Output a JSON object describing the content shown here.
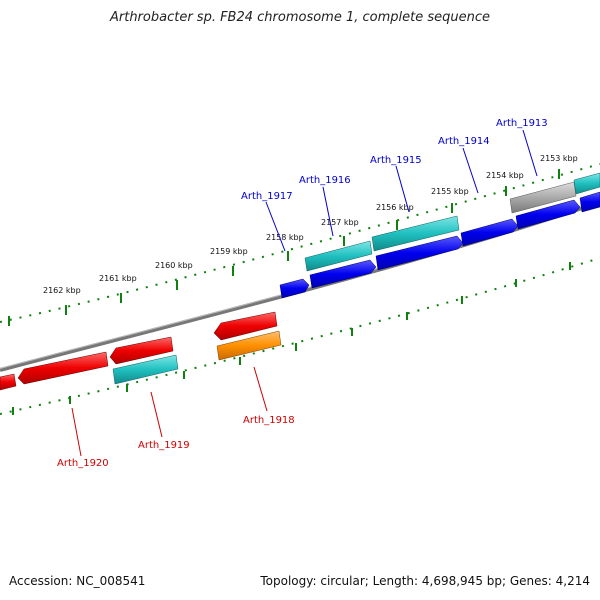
{
  "title": "Arthrobacter sp. FB24 chromosome 1, complete sequence",
  "footer": {
    "accession": "Accession: NC_008541",
    "summary": "Topology: circular; Length: 4,698,945 bp; Genes: 4,214"
  },
  "colors": {
    "forward_gene": "#0000ee",
    "forward_cds": "#20c0c0",
    "reverse_gene": "#ee0000",
    "reverse_cds": "#20c0c0",
    "reverse_other": "#ff9000",
    "pseudo": "#aaaaaa",
    "backbone": "#777777",
    "ticks": "#108010",
    "forward_label": "#0000cc",
    "reverse_label": "#cc0000"
  },
  "kbp_labels": [
    "2153 kbp",
    "2154 kbp",
    "2155 kbp",
    "2156 kbp",
    "2157 kbp",
    "2158 kbp",
    "2159 kbp",
    "2160 kbp",
    "2161 kbp",
    "2162 kbp"
  ],
  "gene_labels_forward": [
    "Arth_1913",
    "Arth_1914",
    "Arth_1915",
    "Arth_1916",
    "Arth_1917"
  ],
  "gene_labels_reverse": [
    "Arth_1918",
    "Arth_1919",
    "Arth_1920"
  ]
}
